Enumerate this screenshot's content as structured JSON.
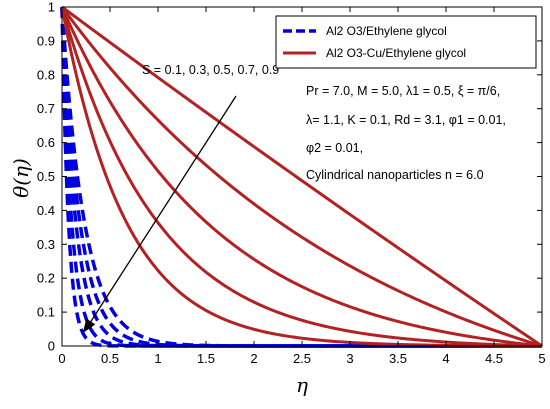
{
  "chart_data": {
    "type": "line",
    "xlabel": "η",
    "ylabel": "θ(η)",
    "xlim": [
      0,
      5
    ],
    "ylim": [
      0,
      1
    ],
    "xticks": [
      "0",
      "0.5",
      "1",
      "1.5",
      "2",
      "2.5",
      "3",
      "3.5",
      "4",
      "4.5",
      "5"
    ],
    "yticks": [
      "0",
      "0.1",
      "0.2",
      "0.3",
      "0.4",
      "0.5",
      "0.6",
      "0.7",
      "0.8",
      "0.9",
      "1"
    ],
    "grid": false,
    "legend_position": "top-right",
    "legend": [
      {
        "label": "Al2 O3/Ethylene glycol",
        "color": "#0000e0",
        "style": "dashed"
      },
      {
        "label": "Al2 O3-Cu/Ethylene glycol",
        "color": "#b22222",
        "style": "solid"
      }
    ],
    "annotations": {
      "s_label": "S = 0.1, 0.3, 0.5, 0.7, 0.9",
      "params_line1": "Pr = 7.0, M = 5.0, λ1 = 0.5, ξ = π/6,",
      "params_line2": "λ= 1.1, K = 0.1, Rd = 3.1, φ1 = 0.01,",
      "params_line3": "φ2 = 0.01,",
      "params_line4": "Cylindrical nanoparticles n = 6.0"
    },
    "series_groups": [
      {
        "name": "Al2 O3/Ethylene glycol",
        "color": "#0000e0",
        "style": "dashed",
        "S_values": [
          0.1,
          0.3,
          0.5,
          0.7,
          0.9
        ],
        "decay_rates": [
          15.0,
          10.0,
          7.0,
          5.4,
          4.3
        ]
      },
      {
        "name": "Al2 O3-Cu/Ethylene glycol",
        "color": "#b22222",
        "style": "solid",
        "S_values": [
          0.1,
          0.3,
          0.5,
          0.7,
          0.9
        ],
        "decay_rates": [
          1.5,
          1.0,
          0.62,
          0.3,
          0.02
        ]
      }
    ]
  }
}
